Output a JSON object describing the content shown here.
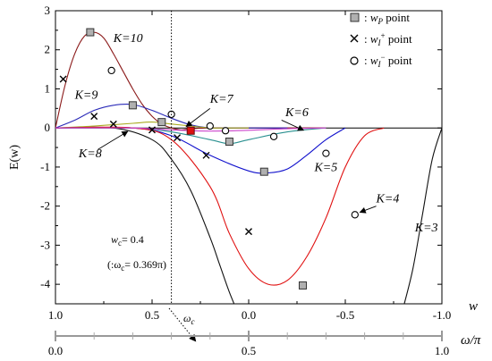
{
  "chart_data": {
    "type": "line",
    "ylabel": "E(w)",
    "xlabel": "w",
    "x2label": "ω/π",
    "xlim": [
      1.0,
      -1.0
    ],
    "ylim": [
      -4.5,
      3.0
    ],
    "xticks": [
      "1.0",
      "0.5",
      "0.0",
      "-0.5",
      "-1.0"
    ],
    "x2ticks": [
      "0.0",
      "0.5",
      "1.0"
    ],
    "yticks": [
      "3",
      "2",
      "1",
      "0",
      "-1",
      "-2",
      "-3",
      "-4"
    ],
    "legend": [
      {
        "symbol": "square",
        "label": "wP point"
      },
      {
        "symbol": "cross",
        "label": "wI+ point"
      },
      {
        "symbol": "circle",
        "label": "wI- point"
      }
    ],
    "series": [
      {
        "name": "K=10",
        "color": "#8b1a1a",
        "x": [
          1.0,
          0.95,
          0.9,
          0.85,
          0.8,
          0.75,
          0.7,
          0.65,
          0.6,
          0.55,
          0.5,
          0.45,
          0.4,
          0.35,
          0.3,
          0.2,
          0.1,
          0.0,
          -0.2,
          -0.4
        ],
        "y": [
          0,
          1.1,
          1.9,
          2.35,
          2.45,
          2.3,
          1.9,
          1.45,
          1.0,
          0.6,
          0.3,
          0.1,
          0.0,
          -0.05,
          -0.02,
          0,
          0,
          0,
          0,
          0
        ]
      },
      {
        "name": "K=9",
        "color": "#2a2ab8",
        "x": [
          1.0,
          0.9,
          0.8,
          0.7,
          0.6,
          0.5,
          0.4,
          0.3,
          0.2,
          0.1,
          0.0,
          -0.2
        ],
        "y": [
          0,
          0.2,
          0.45,
          0.58,
          0.6,
          0.45,
          0.25,
          0.08,
          0.0,
          0.0,
          0.0,
          0.0
        ]
      },
      {
        "name": "K=8",
        "color": "#111111",
        "x": [
          1.0,
          0.7,
          0.5,
          0.4,
          0.3,
          0.2,
          0.15,
          0.1,
          0.05
        ],
        "y": [
          0,
          0.0,
          -0.3,
          -0.8,
          -1.6,
          -2.8,
          -3.5,
          -4.2,
          -4.8
        ]
      },
      {
        "name": "K=7",
        "color": "#aaaa22",
        "x": [
          1.0,
          0.8,
          0.6,
          0.5,
          0.4,
          0.3,
          0.2,
          0.1,
          0.0
        ],
        "y": [
          0,
          0.05,
          0.12,
          0.15,
          0.1,
          0.05,
          0.0,
          0.0,
          0.0
        ]
      },
      {
        "name": "K=6",
        "color": "#2a9090",
        "x": [
          1.0,
          0.6,
          0.4,
          0.2,
          0.1,
          0.0,
          -0.2,
          -0.4
        ],
        "y": [
          0,
          0.0,
          -0.1,
          -0.3,
          -0.4,
          -0.3,
          -0.1,
          0.0
        ]
      },
      {
        "name": "K=5",
        "color": "#1010cc",
        "x": [
          1.0,
          0.6,
          0.4,
          0.2,
          0.0,
          -0.1,
          -0.2,
          -0.3,
          -0.4,
          -0.5
        ],
        "y": [
          0,
          0.0,
          -0.2,
          -0.7,
          -1.1,
          -1.15,
          -1.05,
          -0.7,
          -0.3,
          0.0
        ]
      },
      {
        "name": "K=4",
        "color": "#e01010",
        "x": [
          1.0,
          0.6,
          0.4,
          0.2,
          0.1,
          0.0,
          -0.1,
          -0.2,
          -0.3,
          -0.4,
          -0.5,
          -0.6,
          -0.7
        ],
        "y": [
          0,
          0.0,
          -0.3,
          -1.5,
          -2.7,
          -3.6,
          -4.0,
          -3.9,
          -3.3,
          -2.3,
          -1.0,
          -0.2,
          0.0
        ]
      },
      {
        "name": "K=3",
        "color": "#111111",
        "x": [
          -1.0,
          -0.95,
          -0.9,
          -0.85,
          -0.8
        ],
        "y": [
          0,
          -0.8,
          -2.2,
          -3.6,
          -4.6
        ]
      },
      {
        "name": "",
        "color": "#cc44cc",
        "x": [
          1.0,
          0.6,
          0.4,
          0.2,
          0.0,
          -0.2,
          -0.4
        ],
        "y": [
          0,
          0.0,
          -0.05,
          -0.08,
          -0.06,
          -0.02,
          0.0
        ]
      }
    ],
    "markers": {
      "square": [
        [
          0.82,
          2.45
        ],
        [
          0.6,
          0.58
        ],
        [
          0.45,
          0.15
        ],
        [
          0.1,
          -0.35
        ],
        [
          -0.08,
          -1.12
        ],
        [
          -0.28,
          -4.03
        ]
      ],
      "square_red": [
        [
          0.3,
          -0.07
        ]
      ],
      "cross": [
        [
          0.96,
          1.25
        ],
        [
          0.8,
          0.3
        ],
        [
          0.7,
          0.1
        ],
        [
          0.5,
          -0.05
        ],
        [
          0.37,
          -0.25
        ],
        [
          0.22,
          -0.7
        ],
        [
          0.0,
          -2.65
        ]
      ],
      "circle": [
        [
          0.71,
          1.47
        ],
        [
          0.4,
          0.35
        ],
        [
          0.2,
          0.05
        ],
        [
          0.12,
          -0.07
        ],
        [
          -0.13,
          -0.22
        ],
        [
          -0.4,
          -0.65
        ],
        [
          -0.55,
          -2.22
        ]
      ]
    },
    "labels": [
      {
        "text": "K=10",
        "x": 0.7,
        "y": 2.2
      },
      {
        "text": "K=9",
        "x": 0.9,
        "y": 0.75
      },
      {
        "text": "K=8",
        "x": 0.88,
        "y": -0.75
      },
      {
        "text": "K=7",
        "x": 0.2,
        "y": 0.65
      },
      {
        "text": "K=6",
        "x": -0.19,
        "y": 0.3
      },
      {
        "text": "K=5",
        "x": -0.34,
        "y": -1.1
      },
      {
        "text": "K=4",
        "x": -0.66,
        "y": -1.9
      },
      {
        "text": "K=3",
        "x": -0.86,
        "y": -2.65
      }
    ],
    "vline_w": 0.4,
    "annotations": {
      "wc_line1": "= 0.4",
      "wc_line2": "(:ω",
      "wc_line2b": "= 0.369π)",
      "omega_c": "ω"
    },
    "grid": false
  }
}
